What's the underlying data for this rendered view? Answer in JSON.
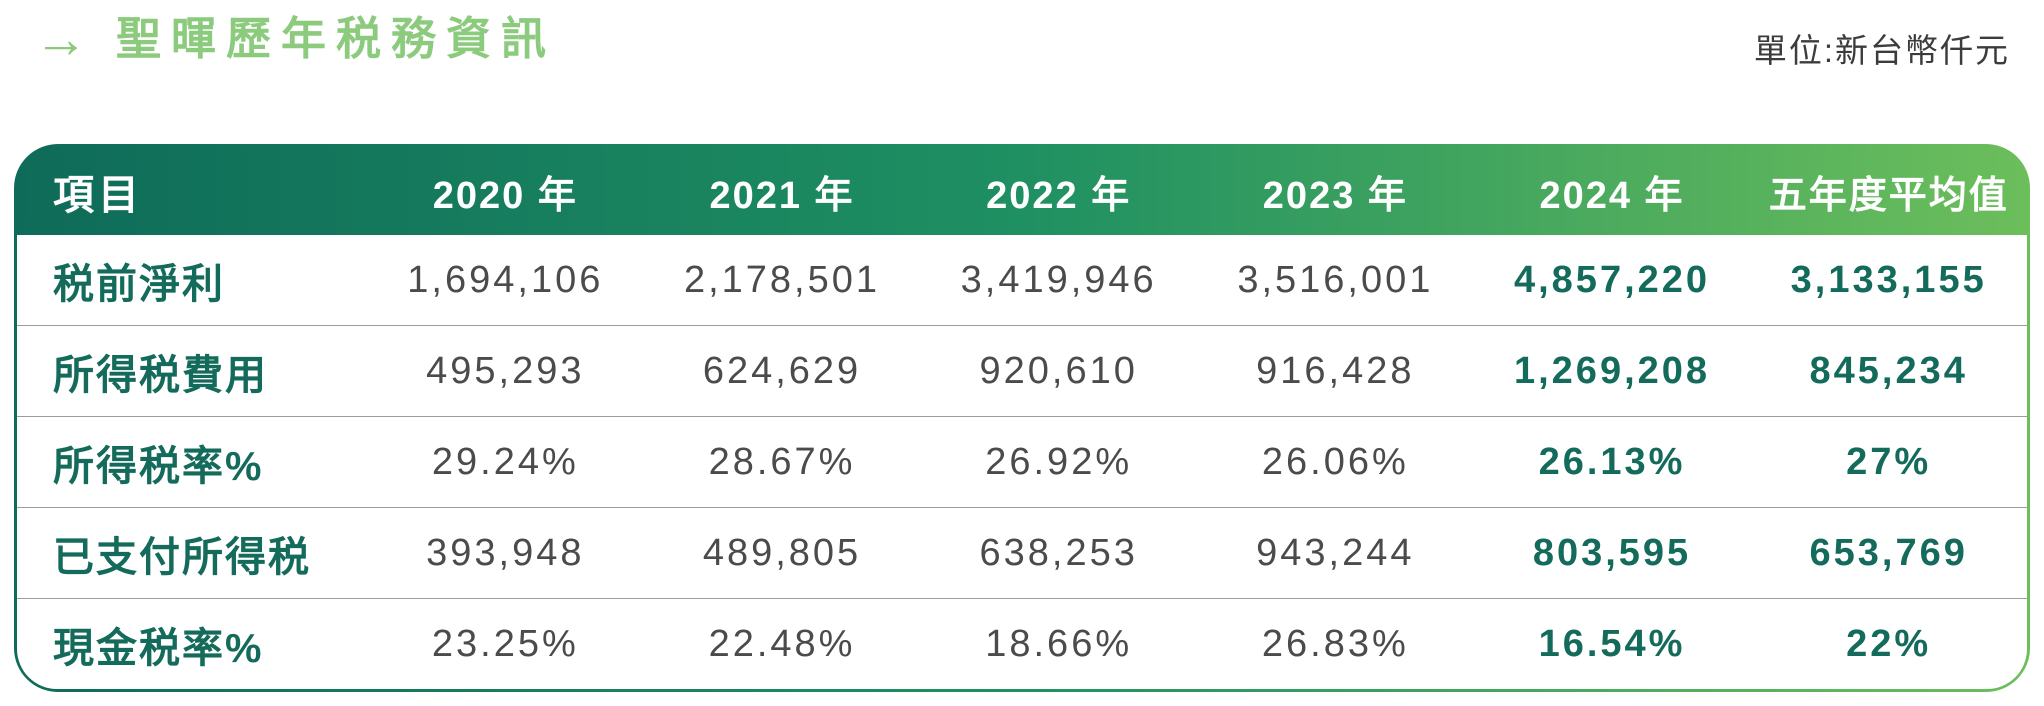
{
  "header": {
    "arrow": "→",
    "title": "聖暉歷年税務資訊",
    "unit_label": "單位:新台幣仟元"
  },
  "table": {
    "columns": [
      "項目",
      "2020 年",
      "2021 年",
      "2022 年",
      "2023 年",
      "2024 年",
      "五年度平均值"
    ],
    "rows": [
      {
        "label": "税前淨利",
        "values": [
          "1,694,106",
          "2,178,501",
          "3,419,946",
          "3,516,001",
          "4,857,220",
          "3,133,155"
        ]
      },
      {
        "label": "所得税費用",
        "values": [
          "495,293",
          "624,629",
          "920,610",
          "916,428",
          "1,269,208",
          "845,234"
        ]
      },
      {
        "label": "所得税率%",
        "values": [
          "29.24%",
          "28.67%",
          "26.92%",
          "26.06%",
          "26.13%",
          "27%"
        ]
      },
      {
        "label": "已支付所得税",
        "values": [
          "393,948",
          "489,805",
          "638,253",
          "943,244",
          "803,595",
          "653,769"
        ]
      },
      {
        "label": "現金税率%",
        "values": [
          "23.25%",
          "22.48%",
          "18.66%",
          "26.83%",
          "16.54%",
          "22%"
        ]
      }
    ]
  },
  "colors": {
    "title_green": "#8CCB7E",
    "header_gradient_start": "#0E6B59",
    "header_gradient_mid": "#1F9062",
    "header_gradient_end": "#6CBE5B",
    "accent_teal": "#156B5B",
    "value_gray": "#4B4B4B",
    "separator_gray": "#9C9C9C",
    "unit_text_gray": "#3C3C3C"
  }
}
